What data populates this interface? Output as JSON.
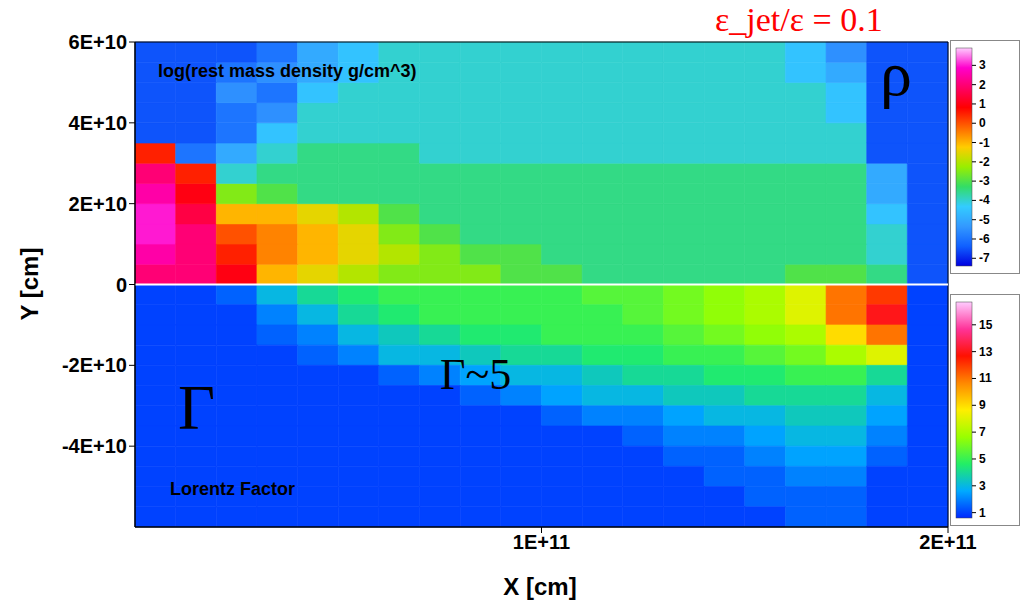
{
  "chart_data": {
    "type": "heatmap",
    "title": "ε_jet/ε = 0.1",
    "x_label": "X [cm]",
    "y_label": "Y [cm]",
    "xlim": [
      0,
      200000000000.0
    ],
    "ylim": [
      -60000000000.0,
      60000000000.0
    ],
    "xticks": [
      {
        "value": 100000000000.0,
        "label": "1E+11"
      },
      {
        "value": 200000000000.0,
        "label": "2E+11"
      }
    ],
    "yticks": [
      {
        "value": 60000000000.0,
        "label": "6E+10"
      },
      {
        "value": 40000000000.0,
        "label": "4E+10"
      },
      {
        "value": 20000000000.0,
        "label": "2E+10"
      },
      0,
      {
        "value": -20000000000.0,
        "label": "-2E+10"
      },
      {
        "value": -40000000000.0,
        "label": "-4E+10"
      }
    ],
    "x_edges": [
      0,
      10000000000.0,
      20000000000.0,
      30000000000.0,
      40000000000.0,
      50000000000.0,
      60000000000.0,
      70000000000.0,
      80000000000.0,
      90000000000.0,
      100000000000.0,
      110000000000.0,
      120000000000.0,
      130000000000.0,
      140000000000.0,
      150000000000.0,
      160000000000.0,
      170000000000.0,
      180000000000.0,
      190000000000.0,
      200000000000.0
    ],
    "panels": [
      {
        "label": "log(rest mass density g/cm^3)",
        "symbol": "ρ",
        "y_edges": [
          0,
          5000000000.0,
          10000000000.0,
          15000000000.0,
          20000000000.0,
          25000000000.0,
          30000000000.0,
          35000000000.0,
          40000000000.0,
          45000000000.0,
          50000000000.0,
          55000000000.0,
          60000000000.0
        ],
        "cells": [
          [
            2,
            2,
            1,
            -1,
            -1.5,
            -2,
            -2.5,
            -2.5,
            -2.5,
            -3,
            -3,
            -3.5,
            -3.5,
            -3.5,
            -3.5,
            -3.5,
            -3,
            -3,
            -3.5,
            -6.5
          ],
          [
            2.5,
            2,
            0.5,
            -0.5,
            -1,
            -1.5,
            -2,
            -2.5,
            -3,
            -3,
            -3.5,
            -3.5,
            -3.5,
            -3.5,
            -3.5,
            -3.5,
            -3.5,
            -3.5,
            -4,
            -6.5
          ],
          [
            3,
            2,
            0,
            -0.5,
            -1,
            -1.5,
            -2.5,
            -3,
            -3.5,
            -3.5,
            -3.5,
            -3.5,
            -3.5,
            -3.5,
            -3.5,
            -3.5,
            -3.5,
            -3.5,
            -4,
            -6.5
          ],
          [
            3,
            1.5,
            -1,
            -1,
            -1.5,
            -2,
            -3,
            -3.5,
            -3.5,
            -3.5,
            -3.5,
            -3.5,
            -3.5,
            -3.5,
            -3.5,
            -3.5,
            -3.5,
            -3.5,
            -4.5,
            -6.5
          ],
          [
            2.5,
            1,
            -2.5,
            -3,
            -3.5,
            -3.5,
            -3.5,
            -3.5,
            -3.5,
            -3.5,
            -3.5,
            -3.5,
            -3.5,
            -3.5,
            -3.5,
            -3.5,
            -3.5,
            -3.5,
            -5,
            -6.5
          ],
          [
            2,
            0.5,
            -4,
            -3.5,
            -3.5,
            -3.5,
            -3.5,
            -3.5,
            -3.5,
            -3.5,
            -3.5,
            -3.5,
            -3.5,
            -3.5,
            -3.5,
            -3.5,
            -3.5,
            -3.5,
            -5,
            -6.5
          ],
          [
            0.5,
            -6,
            -5,
            -4,
            -3.5,
            -3.5,
            -3.5,
            -4,
            -4,
            -4,
            -4,
            -4,
            -4,
            -4,
            -4,
            -4,
            -4,
            -4,
            -6.5,
            -6.5
          ],
          [
            -6.5,
            -6.5,
            -6,
            -4.5,
            -4,
            -4,
            -4,
            -4,
            -4,
            -4,
            -4,
            -4,
            -4,
            -4,
            -4,
            -4,
            -4,
            -4,
            -6.5,
            -6.5
          ],
          [
            -6.5,
            -6.5,
            -6,
            -5.5,
            -4,
            -4,
            -4,
            -4,
            -4,
            -4,
            -4,
            -4,
            -4,
            -4,
            -4,
            -4,
            -4,
            -4.5,
            -6.5,
            -6.5
          ],
          [
            -6.5,
            -6.5,
            -5.5,
            -6,
            -4.5,
            -4,
            -4,
            -4,
            -4,
            -4,
            -4,
            -4,
            -4,
            -4,
            -4,
            -4,
            -4,
            -4.5,
            -6.5,
            -6.5
          ],
          [
            -6.5,
            -6.5,
            -6,
            -5.5,
            -5,
            -4.5,
            -4,
            -4,
            -4,
            -4,
            -4,
            -4,
            -4,
            -4,
            -4,
            -4,
            -4.5,
            -5,
            -6.5,
            -6.5
          ],
          [
            -6.5,
            -6.5,
            -6.5,
            -6,
            -5,
            -4.5,
            -4,
            -4,
            -4,
            -4,
            -4,
            -4,
            -4,
            -4,
            -4,
            -4,
            -4.5,
            -5.5,
            -6.5,
            -6.5
          ]
        ],
        "colorbar": {
          "range": [
            -7.4,
            3.9
          ],
          "ticks": [
            3,
            2,
            1,
            0,
            -1,
            -2,
            -3,
            -4,
            -5,
            -6,
            -7
          ]
        }
      },
      {
        "label": "Lorentz Factor",
        "symbol": "Γ",
        "annotation": "Γ~5",
        "y_edges": [
          0,
          -5000000000.0,
          -10000000000.0,
          -15000000000.0,
          -20000000000.0,
          -25000000000.0,
          -30000000000.0,
          -35000000000.0,
          -40000000000.0,
          -45000000000.0,
          -50000000000.0,
          -55000000000.0,
          -60000000000.0
        ],
        "cells": [
          [
            1,
            1,
            1.5,
            3,
            4,
            4.5,
            5,
            5,
            5,
            5,
            5,
            5.5,
            5.5,
            6,
            6.5,
            7,
            8,
            11,
            12,
            1
          ],
          [
            1,
            1,
            1,
            2,
            3,
            4,
            4.5,
            5,
            5,
            5,
            5,
            5,
            5.5,
            6,
            6.5,
            7,
            8,
            11,
            13,
            1
          ],
          [
            1,
            1,
            1,
            1.5,
            2,
            3,
            3.5,
            4,
            4.5,
            4.5,
            5,
            5,
            5,
            5.5,
            6,
            6.5,
            7,
            9,
            11,
            1
          ],
          [
            1,
            1,
            1,
            1,
            1.5,
            2,
            3,
            3,
            3.5,
            4,
            4,
            4.5,
            4.5,
            5,
            5,
            5.5,
            6,
            7,
            8,
            1
          ],
          [
            1,
            1,
            1,
            1,
            1,
            1,
            1.5,
            2,
            2.5,
            3,
            3,
            3.5,
            4,
            4,
            4.5,
            4.5,
            5,
            5,
            4,
            1
          ],
          [
            1,
            1,
            1,
            1,
            1,
            1,
            1,
            1,
            1.5,
            2,
            2.5,
            3,
            3,
            3.5,
            3.5,
            4,
            4,
            4,
            3,
            1
          ],
          [
            1,
            1,
            1,
            1,
            1,
            1,
            1,
            1,
            1,
            1,
            1.5,
            2,
            2,
            2.5,
            3,
            3,
            3.5,
            3.5,
            2.5,
            1
          ],
          [
            1,
            1,
            1,
            1,
            1,
            1,
            1,
            1,
            1,
            1,
            1,
            1,
            1.5,
            2,
            2,
            2.5,
            3,
            3,
            2,
            1
          ],
          [
            1,
            1,
            1,
            1,
            1,
            1,
            1,
            1,
            1,
            1,
            1,
            1,
            1,
            1.5,
            1.5,
            2,
            2.5,
            2.5,
            1.5,
            1
          ],
          [
            1,
            1,
            1,
            1,
            1,
            1,
            1,
            1,
            1,
            1,
            1,
            1,
            1,
            1,
            1.5,
            1.5,
            2,
            2,
            1,
            1
          ],
          [
            1,
            1,
            1,
            1,
            1,
            1,
            1,
            1,
            1,
            1,
            1,
            1,
            1,
            1,
            1,
            1.5,
            1.5,
            1.5,
            1,
            1
          ],
          [
            1,
            1,
            1,
            1,
            1,
            1,
            1,
            1,
            1,
            1,
            1,
            1,
            1,
            1,
            1,
            1,
            1.5,
            1.5,
            1,
            1
          ]
        ],
        "colorbar": {
          "range": [
            0.6,
            16.7
          ],
          "ticks": [
            15,
            13,
            11,
            9,
            7,
            5,
            3,
            1
          ]
        }
      }
    ]
  }
}
